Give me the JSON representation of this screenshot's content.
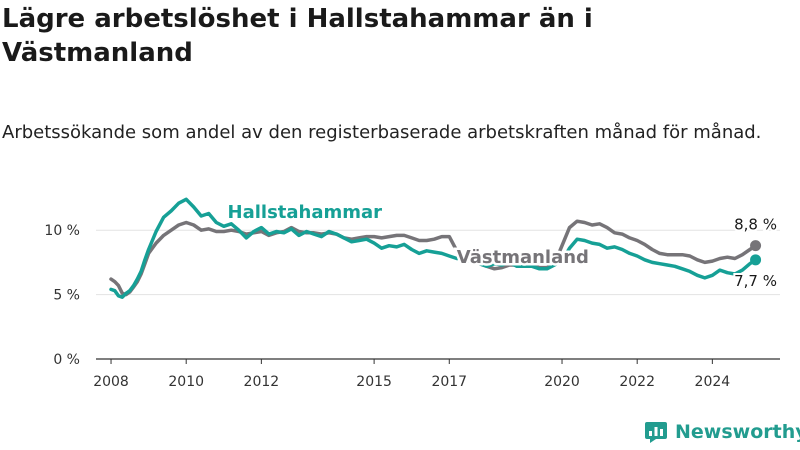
{
  "title": "Lägre arbetslöshet i Hallstahammar än i Västmanland",
  "subtitle": "Arbetssökande som andel av den registerbaserade arbetskraften månad för månad.",
  "brand": {
    "name": "Newsworthy",
    "icon": "newsworthy-logo-icon"
  },
  "colors": {
    "hallstahammar": "#16a096",
    "vastmanland": "#767478",
    "axis": "#333333",
    "grid": "#e3e3e3"
  },
  "chart_data": {
    "type": "line",
    "xlim": [
      2007.6,
      2025.8
    ],
    "ylim": [
      0,
      12.5
    ],
    "x_ticks": [
      2008,
      2010,
      2012,
      2015,
      2017,
      2020,
      2022,
      2024
    ],
    "x_tick_labels": [
      "2008",
      "2010",
      "2012",
      "2015",
      "2017",
      "2020",
      "2022",
      "2024"
    ],
    "y_ticks": [
      0,
      5,
      10
    ],
    "y_tick_labels": [
      "0 %",
      "5 %",
      "10 %"
    ],
    "grid": true,
    "series": [
      {
        "name": "Hallstahammar",
        "color": "#16a096",
        "x": [
          2008.0,
          2008.1,
          2008.2,
          2008.3,
          2008.4,
          2008.5,
          2008.6,
          2008.7,
          2008.8,
          2008.9,
          2009.0,
          2009.2,
          2009.4,
          2009.6,
          2009.8,
          2010.0,
          2010.2,
          2010.4,
          2010.6,
          2010.8,
          2011.0,
          2011.2,
          2011.4,
          2011.6,
          2011.8,
          2012.0,
          2012.2,
          2012.4,
          2012.6,
          2012.8,
          2013.0,
          2013.2,
          2013.4,
          2013.6,
          2013.8,
          2014.0,
          2014.2,
          2014.4,
          2014.6,
          2014.8,
          2015.0,
          2015.2,
          2015.4,
          2015.6,
          2015.8,
          2016.0,
          2016.2,
          2016.4,
          2016.6,
          2016.8,
          2017.0,
          2017.2,
          2017.4,
          2017.6,
          2017.8,
          2018.0,
          2018.2,
          2018.4,
          2018.6,
          2018.8,
          2019.0,
          2019.2,
          2019.4,
          2019.6,
          2019.8,
          2020.0,
          2020.2,
          2020.4,
          2020.6,
          2020.8,
          2021.0,
          2021.2,
          2021.4,
          2021.6,
          2021.8,
          2022.0,
          2022.2,
          2022.4,
          2022.6,
          2022.8,
          2023.0,
          2023.2,
          2023.4,
          2023.6,
          2023.8,
          2024.0,
          2024.2,
          2024.4,
          2024.6,
          2024.8,
          2025.0,
          2025.15
        ],
        "y": [
          5.4,
          5.3,
          4.9,
          4.8,
          5.1,
          5.3,
          5.7,
          6.2,
          6.8,
          7.7,
          8.5,
          9.9,
          11.0,
          11.5,
          12.1,
          12.4,
          11.8,
          11.1,
          11.3,
          10.6,
          10.3,
          10.5,
          10.0,
          9.4,
          9.9,
          10.2,
          9.7,
          9.9,
          9.8,
          10.1,
          9.6,
          9.9,
          9.7,
          9.5,
          9.9,
          9.7,
          9.4,
          9.1,
          9.2,
          9.3,
          9.0,
          8.6,
          8.8,
          8.7,
          8.9,
          8.5,
          8.2,
          8.4,
          8.3,
          8.2,
          8.0,
          7.8,
          7.8,
          7.5,
          7.4,
          7.2,
          7.4,
          7.3,
          7.5,
          7.2,
          7.2,
          7.2,
          7.0,
          7.0,
          7.3,
          7.6,
          8.6,
          9.3,
          9.2,
          9.0,
          8.9,
          8.6,
          8.7,
          8.5,
          8.2,
          8.0,
          7.7,
          7.5,
          7.4,
          7.3,
          7.2,
          7.0,
          6.8,
          6.5,
          6.3,
          6.5,
          6.9,
          6.7,
          6.6,
          6.9,
          7.4,
          7.7
        ]
      },
      {
        "name": "Västmanland",
        "color": "#767478",
        "x": [
          2008.0,
          2008.1,
          2008.2,
          2008.3,
          2008.4,
          2008.5,
          2008.6,
          2008.7,
          2008.8,
          2008.9,
          2009.0,
          2009.2,
          2009.4,
          2009.6,
          2009.8,
          2010.0,
          2010.2,
          2010.4,
          2010.6,
          2010.8,
          2011.0,
          2011.2,
          2011.4,
          2011.6,
          2011.8,
          2012.0,
          2012.2,
          2012.4,
          2012.6,
          2012.8,
          2013.0,
          2013.2,
          2013.4,
          2013.6,
          2013.8,
          2014.0,
          2014.2,
          2014.4,
          2014.6,
          2014.8,
          2015.0,
          2015.2,
          2015.4,
          2015.6,
          2015.8,
          2016.0,
          2016.2,
          2016.4,
          2016.6,
          2016.8,
          2017.0,
          2017.2,
          2017.4,
          2017.6,
          2017.8,
          2018.0,
          2018.2,
          2018.4,
          2018.6,
          2018.8,
          2019.0,
          2019.2,
          2019.4,
          2019.6,
          2019.8,
          2020.0,
          2020.2,
          2020.4,
          2020.6,
          2020.8,
          2021.0,
          2021.2,
          2021.4,
          2021.6,
          2021.8,
          2022.0,
          2022.2,
          2022.4,
          2022.6,
          2022.8,
          2023.0,
          2023.2,
          2023.4,
          2023.6,
          2023.8,
          2024.0,
          2024.2,
          2024.4,
          2024.6,
          2024.8,
          2025.0,
          2025.15
        ],
        "y": [
          6.2,
          6.0,
          5.7,
          5.1,
          5.0,
          5.2,
          5.6,
          6.0,
          6.6,
          7.4,
          8.2,
          9.0,
          9.6,
          10.0,
          10.4,
          10.6,
          10.4,
          10.0,
          10.1,
          9.9,
          9.9,
          10.0,
          9.9,
          9.7,
          9.8,
          9.9,
          9.6,
          9.8,
          9.9,
          10.2,
          9.9,
          9.8,
          9.8,
          9.7,
          9.8,
          9.7,
          9.4,
          9.3,
          9.4,
          9.5,
          9.5,
          9.4,
          9.5,
          9.6,
          9.6,
          9.4,
          9.2,
          9.2,
          9.3,
          9.5,
          9.5,
          8.4,
          8.1,
          7.8,
          7.4,
          7.2,
          7.0,
          7.1,
          7.3,
          7.3,
          7.4,
          7.3,
          7.1,
          7.1,
          7.4,
          8.8,
          10.2,
          10.7,
          10.6,
          10.4,
          10.5,
          10.2,
          9.8,
          9.7,
          9.4,
          9.2,
          8.9,
          8.5,
          8.2,
          8.1,
          8.1,
          8.1,
          8.0,
          7.7,
          7.5,
          7.6,
          7.8,
          7.9,
          7.8,
          8.1,
          8.5,
          8.8
        ]
      }
    ],
    "annotations": [
      {
        "series": "Hallstahammar",
        "text": "Hallstahammar"
      },
      {
        "series": "Västmanland",
        "text": "Västmanland"
      },
      {
        "series": "Västmanland",
        "text": "8,8 %",
        "position": "end-above"
      },
      {
        "series": "Hallstahammar",
        "text": "7,7 %",
        "position": "end-below"
      }
    ]
  }
}
